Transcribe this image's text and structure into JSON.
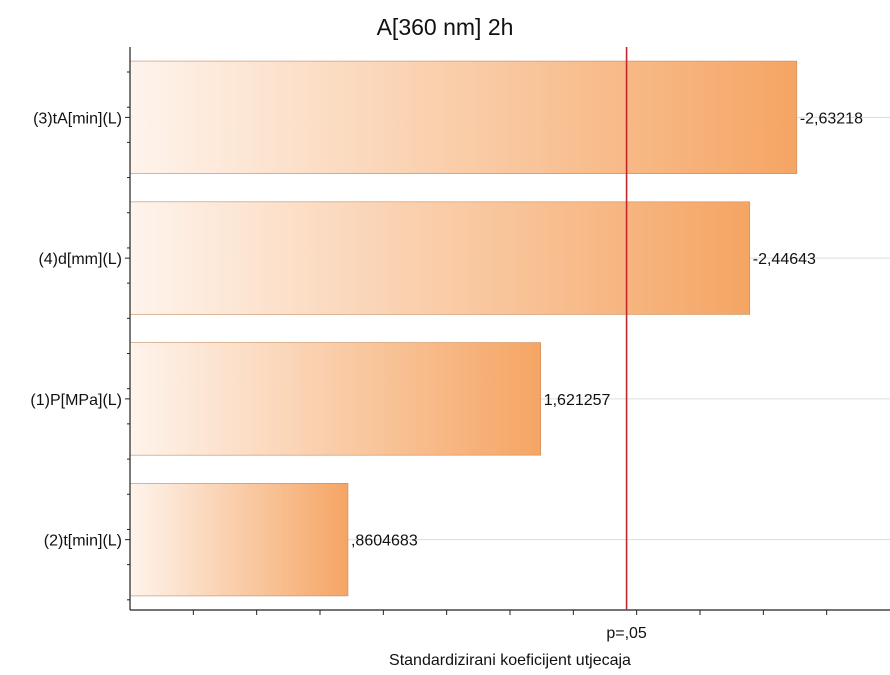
{
  "chart_data": {
    "type": "bar",
    "orientation": "horizontal",
    "title": "A[360 nm] 2h",
    "xlabel": "Standardizirani koeficijent utjecaja",
    "ylabel": "",
    "categories": [
      "(3)tA[min](L)",
      "(4)d[mm](L)",
      "(1)P[MPa](L)",
      "(2)t[min](L)"
    ],
    "values": [
      2.63218,
      2.44643,
      1.621257,
      0.8604683
    ],
    "value_labels": [
      "-2,63218",
      "-2,44643",
      "1,621257",
      ",8604683"
    ],
    "xlim": [
      0,
      3.0
    ],
    "reference_line": {
      "value": 1.9602,
      "label": "p=,05",
      "color": "#c0282d"
    },
    "grid": "horizontal",
    "bar_gradient": [
      "#fef4ec",
      "#f5a564"
    ]
  }
}
